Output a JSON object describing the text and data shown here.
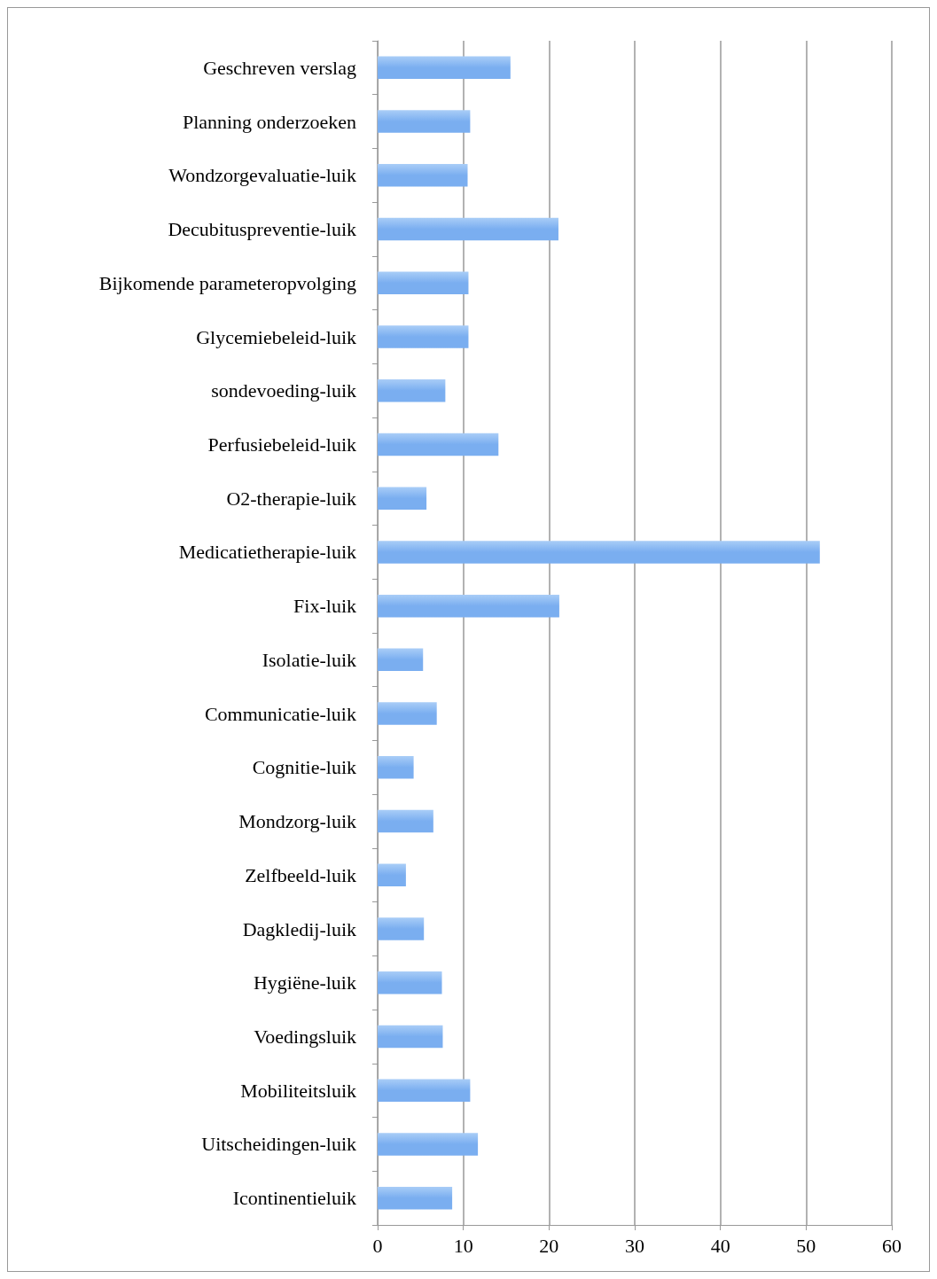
{
  "chart_data": {
    "type": "bar",
    "orientation": "horizontal",
    "categories": [
      "Geschreven verslag",
      "Planning onderzoeken",
      "Wondzorgevaluatie-luik",
      "Decubituspreventie-luik",
      "Bijkomende parameteropvolging",
      "Glycemiebeleid-luik",
      "sondevoeding-luik",
      "Perfusiebeleid-luik",
      "O2-therapie-luik",
      "Medicatietherapie-luik",
      "Fix-luik",
      "Isolatie-luik",
      "Communicatie-luik",
      "Cognitie-luik",
      "Mondzorg-luik",
      "Zelfbeeld-luik",
      "Dagkledij-luik",
      "Hygiëne-luik",
      "Voedingsluik",
      "Mobiliteitsluik",
      "Uitscheidingen-luik",
      "Icontinentieluik"
    ],
    "values": [
      15.5,
      10.8,
      10.5,
      21.1,
      10.6,
      10.6,
      7.9,
      14.1,
      5.7,
      51.6,
      21.2,
      5.3,
      6.9,
      4.2,
      6.5,
      3.3,
      5.4,
      7.5,
      7.6,
      10.8,
      11.7,
      8.7
    ],
    "color": "#7aaef0",
    "xlim": [
      0,
      60
    ],
    "xticks": [
      0,
      10,
      20,
      30,
      40,
      50,
      60
    ],
    "grid": "x"
  }
}
